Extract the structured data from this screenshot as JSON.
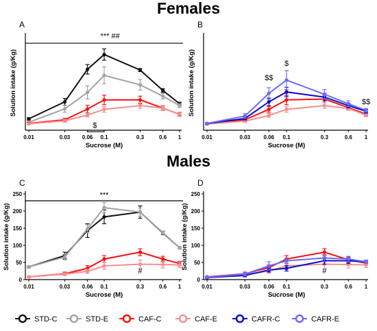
{
  "sections": [
    {
      "title": "Females"
    },
    {
      "title": "Males"
    }
  ],
  "legend": [
    {
      "name": "STD-C",
      "color": "#111111"
    },
    {
      "name": "STD-E",
      "color": "#a3a3a3"
    },
    {
      "name": "CAF-C",
      "color": "#ff0d0d"
    },
    {
      "name": "CAF-E",
      "color": "#f58e8e"
    },
    {
      "name": "CAFR-C",
      "color": "#0b0bc8"
    },
    {
      "name": "CAFR-E",
      "color": "#6b6bf5"
    }
  ],
  "chart_data": [
    {
      "panel": "A",
      "type": "line",
      "x": [
        0.01,
        0.03,
        0.06,
        0.1,
        0.3,
        0.6,
        1
      ],
      "xticks": [
        "0.01",
        "0.03",
        "0.06",
        "0.1",
        "0.3",
        "0.6",
        "1"
      ],
      "xlabel": "Sucrose (M)",
      "ylabel": "Solution intake (g/Kg)",
      "xscale": "log",
      "ylim": [
        0,
        500
      ],
      "yticks": [],
      "show_y_ticks": false,
      "series": [
        {
          "name": "STD-C",
          "color": "#111111",
          "values": [
            60,
            150,
            322,
            400,
            318,
            210,
            140
          ],
          "err": [
            6,
            18,
            25,
            30,
            8,
            10,
            8
          ]
        },
        {
          "name": "STD-E",
          "color": "#a3a3a3",
          "values": [
            42,
            113,
            200,
            290,
            240,
            180,
            130
          ],
          "err": [
            6,
            18,
            35,
            45,
            28,
            15,
            10
          ]
        },
        {
          "name": "CAF-C",
          "color": "#ff0d0d",
          "values": [
            36,
            55,
            112,
            160,
            160,
            117,
            84
          ],
          "err": [
            5,
            8,
            20,
            25,
            20,
            12,
            10
          ]
        },
        {
          "name": "CAF-E",
          "color": "#f58e8e",
          "values": [
            34,
            50,
            80,
            110,
            130,
            117,
            84
          ],
          "err": [
            4,
            8,
            10,
            15,
            15,
            10,
            8
          ]
        }
      ],
      "annotations": [
        {
          "text": "*** ##",
          "x": 0.12,
          "y": 485
        },
        {
          "text": "$",
          "x": 0.075,
          "y": 12
        }
      ],
      "sigline": {
        "x1": 0.01,
        "x2": 1,
        "y": 460
      },
      "shortline": {
        "x1": 0.06,
        "x2": 0.1,
        "y": -8
      }
    },
    {
      "panel": "B",
      "type": "line",
      "x": [
        0.01,
        0.03,
        0.06,
        0.1,
        0.3,
        0.6,
        1
      ],
      "xticks": [
        "0.01",
        "0.03",
        "0.06",
        "0.1",
        "0.3",
        "0.6",
        "1"
      ],
      "xlabel": "Sucrose (M)",
      "ylabel": "Solution intake (g/Kg)",
      "xscale": "log",
      "ylim": [
        0,
        500
      ],
      "yticks": [],
      "show_y_ticks": false,
      "series": [
        {
          "name": "CAF-C",
          "color": "#ff0d0d",
          "values": [
            34,
            55,
            110,
            160,
            165,
            120,
            85
          ],
          "err": [
            4,
            8,
            15,
            25,
            20,
            10,
            8
          ]
        },
        {
          "name": "CAF-E",
          "color": "#f58e8e",
          "values": [
            33,
            48,
            78,
            110,
            130,
            115,
            80
          ],
          "err": [
            4,
            6,
            10,
            15,
            15,
            10,
            8
          ]
        },
        {
          "name": "CAFR-C",
          "color": "#0b0bc8",
          "values": [
            35,
            62,
            150,
            202,
            175,
            130,
            100
          ],
          "err": [
            4,
            8,
            20,
            25,
            20,
            12,
            10
          ]
        },
        {
          "name": "CAFR-E",
          "color": "#6b6bf5",
          "values": [
            36,
            75,
            195,
            265,
            190,
            140,
            105
          ],
          "err": [
            4,
            12,
            30,
            50,
            25,
            15,
            10
          ]
        }
      ],
      "annotations": [
        {
          "text": "$$",
          "x": 0.06,
          "y": 265
        },
        {
          "text": "$",
          "x": 0.1,
          "y": 340
        },
        {
          "text": "$$",
          "x": 1,
          "y": 138
        }
      ]
    },
    {
      "panel": "C",
      "type": "line",
      "x": [
        0.01,
        0.03,
        0.06,
        0.1,
        0.3,
        0.6,
        1
      ],
      "xticks": [
        "0.01",
        "0.03",
        "0.06",
        "0.1",
        "0.3",
        "0.6",
        "1"
      ],
      "xlabel": "Sucrose (M)",
      "ylabel": "Solution intake (g/Kg)",
      "xscale": "log",
      "ylim": [
        0,
        250
      ],
      "yticks": [
        0,
        50,
        100,
        150,
        200,
        250
      ],
      "show_y_ticks": true,
      "series": [
        {
          "name": "STD-C",
          "color": "#111111",
          "values": [
            37,
            70,
            143,
            183,
            197,
            136,
            93
          ],
          "err": [
            3,
            10,
            20,
            20,
            18,
            5,
            4
          ]
        },
        {
          "name": "STD-E",
          "color": "#a3a3a3",
          "values": [
            37,
            66,
            148,
            210,
            197,
            137,
            93
          ],
          "err": [
            3,
            8,
            12,
            15,
            12,
            5,
            4
          ]
        },
        {
          "name": "CAF-C",
          "color": "#ff0d0d",
          "values": [
            8,
            17,
            33,
            60,
            80,
            60,
            47
          ],
          "err": [
            2,
            5,
            8,
            10,
            10,
            8,
            6
          ]
        },
        {
          "name": "CAF-E",
          "color": "#f58e8e",
          "values": [
            8,
            16,
            24,
            40,
            45,
            44,
            43
          ],
          "err": [
            2,
            4,
            6,
            10,
            12,
            10,
            8
          ]
        }
      ],
      "annotations": [
        {
          "text": "***",
          "x": 0.1,
          "y": 240
        },
        {
          "text": "#",
          "x": 0.3,
          "y": 18
        }
      ],
      "sigline": {
        "x1": 0.01,
        "x2": 1,
        "y": 230
      }
    },
    {
      "panel": "D",
      "type": "line",
      "x": [
        0.01,
        0.03,
        0.06,
        0.1,
        0.3,
        0.6,
        1
      ],
      "xticks": [
        "0.01",
        "0.03",
        "0.06",
        "0.1",
        "0.3",
        "0.6",
        "1"
      ],
      "xlabel": "Sucrose (M)",
      "ylabel": "Solution intake (g/Kg)",
      "xscale": "log",
      "ylim": [
        0,
        250
      ],
      "yticks": [
        0,
        50,
        100,
        150,
        200,
        250
      ],
      "show_y_ticks": true,
      "series": [
        {
          "name": "CAF-C",
          "color": "#ff0d0d",
          "values": [
            8,
            17,
            35,
            60,
            80,
            58,
            48
          ],
          "err": [
            2,
            5,
            8,
            10,
            10,
            8,
            6
          ]
        },
        {
          "name": "CAF-E",
          "color": "#f58e8e",
          "values": [
            7,
            15,
            25,
            40,
            45,
            44,
            43
          ],
          "err": [
            2,
            4,
            6,
            10,
            12,
            10,
            8
          ]
        },
        {
          "name": "CAFR-C",
          "color": "#0b0bc8",
          "values": [
            6,
            12,
            28,
            33,
            55,
            55,
            52
          ],
          "err": [
            2,
            4,
            6,
            8,
            10,
            8,
            5
          ]
        },
        {
          "name": "CAFR-E",
          "color": "#6b6bf5",
          "values": [
            7,
            16,
            40,
            55,
            63,
            60,
            52
          ],
          "err": [
            2,
            5,
            12,
            8,
            10,
            8,
            5
          ]
        }
      ],
      "annotations": [
        {
          "text": "#",
          "x": 0.3,
          "y": 18
        }
      ]
    }
  ]
}
